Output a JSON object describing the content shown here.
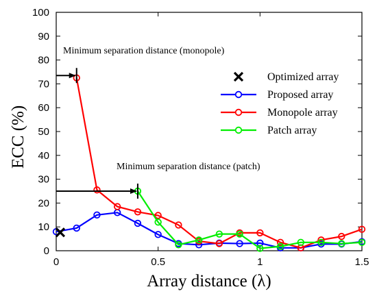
{
  "chart_data": {
    "type": "line",
    "xlabel": "Array distance (λ)",
    "ylabel": "ECC (%)",
    "xlim": [
      0,
      1.5
    ],
    "ylim": [
      0,
      100
    ],
    "xticks": [
      0,
      0.5,
      1,
      1.5
    ],
    "xtick_labels": [
      "0",
      "0.5",
      "1",
      "1.5"
    ],
    "yticks": [
      0,
      10,
      20,
      30,
      40,
      50,
      60,
      70,
      80,
      90,
      100
    ],
    "ytick_labels": [
      "0",
      "10",
      "20",
      "30",
      "40",
      "50",
      "60",
      "70",
      "80",
      "90",
      "100"
    ],
    "grid": false,
    "legend_position": "right",
    "series": [
      {
        "name": "Proposed array",
        "color": "#0000ff",
        "marker": "circle",
        "x": [
          0,
          0.1,
          0.2,
          0.3,
          0.4,
          0.5,
          0.6,
          0.7,
          0.8,
          0.9,
          1.0,
          1.1,
          1.2,
          1.3,
          1.4,
          1.5
        ],
        "y": [
          8,
          9.5,
          15,
          16,
          11.5,
          6.8,
          3,
          2.5,
          3.2,
          3,
          3.2,
          1.2,
          1.2,
          2.8,
          2.8,
          3.8
        ]
      },
      {
        "name": "Monopole array",
        "color": "#ff0000",
        "marker": "circle",
        "x": [
          0.1,
          0.2,
          0.3,
          0.4,
          0.5,
          0.6,
          0.7,
          0.8,
          0.9,
          1.0,
          1.1,
          1.2,
          1.3,
          1.4,
          1.5
        ],
        "y": [
          72.5,
          25.5,
          18.5,
          16.3,
          14.8,
          10.8,
          4,
          3,
          7.5,
          7.5,
          3.5,
          1.2,
          4.5,
          6,
          9
        ]
      },
      {
        "name": "Patch array",
        "color": "#00ee00",
        "marker": "circle",
        "x": [
          0.4,
          0.5,
          0.6,
          0.7,
          0.8,
          0.9,
          1.0,
          1.1,
          1.2,
          1.3,
          1.4,
          1.5
        ],
        "y": [
          25,
          12,
          2.5,
          4.5,
          7,
          7,
          1,
          1.8,
          3.5,
          3.5,
          3,
          3.5
        ]
      },
      {
        "name": "Optimized array",
        "color": "#000000",
        "marker": "x",
        "x": [
          0.02
        ],
        "y": [
          7.7
        ]
      }
    ],
    "legend": [
      "Optimized array",
      "Proposed array",
      "Monopole array",
      "Patch array"
    ],
    "annotations": [
      {
        "text": "Minimum separation distance (monopole)",
        "arrow_from": [
          0,
          73.5
        ],
        "arrow_to": [
          0.1,
          73.5
        ]
      },
      {
        "text": "Minimum separation distance (patch)",
        "arrow_from": [
          0,
          25
        ],
        "arrow_to": [
          0.4,
          25
        ]
      }
    ]
  }
}
